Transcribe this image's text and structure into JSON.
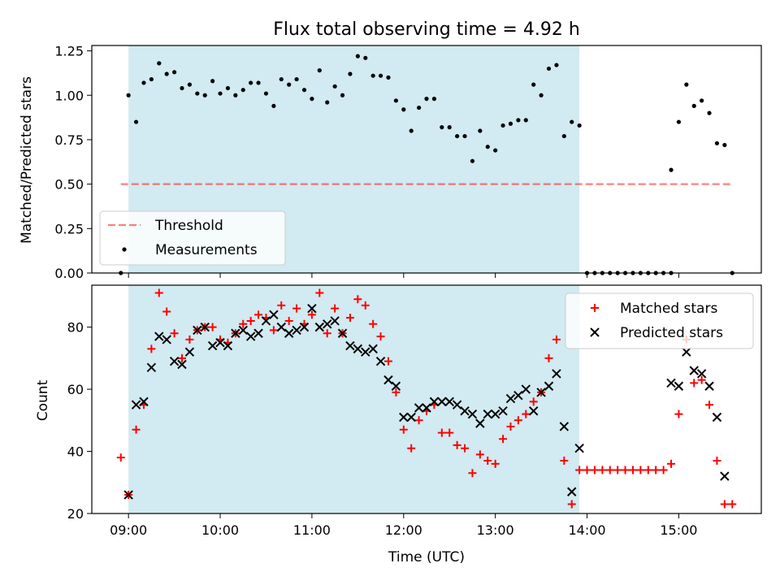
{
  "title": "Flux total observing time = 4.92 h",
  "xlabel": "Time (UTC)",
  "colors": {
    "observing_span": "#add8e6",
    "threshold": "#ff0000",
    "measurements": "#000000",
    "matched": "#ff0000",
    "predicted": "#000000"
  },
  "chart_data": [
    {
      "type": "scatter",
      "ylabel": "Matched/Predicted stars",
      "xlim": [
        "08:36",
        "15:54"
      ],
      "ylim": [
        0,
        1.28
      ],
      "yticks": [
        "0.00",
        "0.25",
        "0.50",
        "0.75",
        "1.00",
        "1.25"
      ],
      "shaded_span": [
        "09:00",
        "13:55"
      ],
      "legend": {
        "position": "lower-left",
        "entries": [
          "Threshold",
          "Measurements"
        ]
      },
      "threshold": {
        "name": "Threshold",
        "value": 0.5,
        "x_range": [
          "08:55",
          "15:35"
        ],
        "style": "dashed"
      },
      "series": [
        {
          "name": "Measurements",
          "marker": "dot",
          "points": [
            [
              "08:55",
              0.0
            ],
            [
              "09:00",
              1.0
            ],
            [
              "09:05",
              0.85
            ],
            [
              "09:10",
              1.07
            ],
            [
              "09:15",
              1.09
            ],
            [
              "09:20",
              1.18
            ],
            [
              "09:25",
              1.12
            ],
            [
              "09:30",
              1.13
            ],
            [
              "09:35",
              1.04
            ],
            [
              "09:40",
              1.06
            ],
            [
              "09:45",
              1.01
            ],
            [
              "09:50",
              1.0
            ],
            [
              "09:55",
              1.08
            ],
            [
              "10:00",
              1.01
            ],
            [
              "10:05",
              1.04
            ],
            [
              "10:10",
              1.0
            ],
            [
              "10:15",
              1.03
            ],
            [
              "10:20",
              1.07
            ],
            [
              "10:25",
              1.07
            ],
            [
              "10:30",
              1.01
            ],
            [
              "10:35",
              0.94
            ],
            [
              "10:40",
              1.09
            ],
            [
              "10:45",
              1.06
            ],
            [
              "10:50",
              1.09
            ],
            [
              "10:55",
              1.03
            ],
            [
              "11:00",
              0.98
            ],
            [
              "11:05",
              1.14
            ],
            [
              "11:10",
              0.96
            ],
            [
              "11:15",
              1.05
            ],
            [
              "11:20",
              1.0
            ],
            [
              "11:25",
              1.12
            ],
            [
              "11:30",
              1.22
            ],
            [
              "11:35",
              1.21
            ],
            [
              "11:40",
              1.11
            ],
            [
              "11:45",
              1.11
            ],
            [
              "11:50",
              1.1
            ],
            [
              "11:55",
              0.97
            ],
            [
              "12:00",
              0.92
            ],
            [
              "12:05",
              0.8
            ],
            [
              "12:10",
              0.93
            ],
            [
              "12:15",
              0.98
            ],
            [
              "12:20",
              0.98
            ],
            [
              "12:25",
              0.82
            ],
            [
              "12:30",
              0.82
            ],
            [
              "12:35",
              0.77
            ],
            [
              "12:40",
              0.77
            ],
            [
              "12:45",
              0.63
            ],
            [
              "12:50",
              0.8
            ],
            [
              "12:55",
              0.71
            ],
            [
              "13:00",
              0.69
            ],
            [
              "13:05",
              0.83
            ],
            [
              "13:10",
              0.84
            ],
            [
              "13:15",
              0.86
            ],
            [
              "13:20",
              0.86
            ],
            [
              "13:25",
              1.06
            ],
            [
              "13:30",
              1.0
            ],
            [
              "13:35",
              1.15
            ],
            [
              "13:40",
              1.17
            ],
            [
              "13:45",
              0.77
            ],
            [
              "13:50",
              0.85
            ],
            [
              "13:55",
              0.83
            ],
            [
              "14:00",
              0.0
            ],
            [
              "14:05",
              0.0
            ],
            [
              "14:10",
              0.0
            ],
            [
              "14:15",
              0.0
            ],
            [
              "14:20",
              0.0
            ],
            [
              "14:25",
              0.0
            ],
            [
              "14:30",
              0.0
            ],
            [
              "14:35",
              0.0
            ],
            [
              "14:40",
              0.0
            ],
            [
              "14:45",
              0.0
            ],
            [
              "14:50",
              0.0
            ],
            [
              "14:55",
              0.0
            ],
            [
              "14:55",
              0.58
            ],
            [
              "15:00",
              0.85
            ],
            [
              "15:05",
              1.06
            ],
            [
              "15:10",
              0.94
            ],
            [
              "15:15",
              0.97
            ],
            [
              "15:20",
              0.9
            ],
            [
              "15:25",
              0.73
            ],
            [
              "15:30",
              0.72
            ],
            [
              "15:35",
              0.0
            ]
          ]
        }
      ]
    },
    {
      "type": "scatter",
      "ylabel": "Count",
      "xlabel": "Time (UTC)",
      "xlim": [
        "08:36",
        "15:54"
      ],
      "ylim": [
        20,
        93.5
      ],
      "yticks": [
        "20",
        "40",
        "60",
        "80"
      ],
      "xticks": [
        "09:00",
        "10:00",
        "11:00",
        "12:00",
        "13:00",
        "14:00",
        "15:00"
      ],
      "shaded_span": [
        "09:00",
        "13:55"
      ],
      "legend": {
        "position": "top-right",
        "entries": [
          "Matched stars",
          "Predicted stars"
        ]
      },
      "series": [
        {
          "name": "Matched stars",
          "marker": "plus",
          "points": [
            [
              "08:55",
              38
            ],
            [
              "09:00",
              26
            ],
            [
              "09:05",
              47
            ],
            [
              "09:10",
              55
            ],
            [
              "09:15",
              73
            ],
            [
              "09:20",
              91
            ],
            [
              "09:25",
              85
            ],
            [
              "09:30",
              78
            ],
            [
              "09:35",
              70
            ],
            [
              "09:40",
              76
            ],
            [
              "09:45",
              79
            ],
            [
              "09:50",
              80
            ],
            [
              "09:55",
              80
            ],
            [
              "10:00",
              76
            ],
            [
              "10:05",
              75
            ],
            [
              "10:10",
              78
            ],
            [
              "10:15",
              81
            ],
            [
              "10:20",
              82
            ],
            [
              "10:25",
              84
            ],
            [
              "10:30",
              83
            ],
            [
              "10:35",
              79
            ],
            [
              "10:40",
              87
            ],
            [
              "10:45",
              82
            ],
            [
              "10:50",
              86
            ],
            [
              "10:55",
              81
            ],
            [
              "11:00",
              84
            ],
            [
              "11:05",
              91
            ],
            [
              "11:10",
              78
            ],
            [
              "11:15",
              86
            ],
            [
              "11:20",
              78
            ],
            [
              "11:25",
              83
            ],
            [
              "11:30",
              89
            ],
            [
              "11:35",
              87
            ],
            [
              "11:40",
              81
            ],
            [
              "11:45",
              77
            ],
            [
              "11:50",
              69
            ],
            [
              "11:55",
              59
            ],
            [
              "12:00",
              47
            ],
            [
              "12:05",
              41
            ],
            [
              "12:10",
              50
            ],
            [
              "12:15",
              53
            ],
            [
              "12:20",
              55
            ],
            [
              "12:25",
              46
            ],
            [
              "12:30",
              46
            ],
            [
              "12:35",
              42
            ],
            [
              "12:40",
              41
            ],
            [
              "12:45",
              33
            ],
            [
              "12:50",
              39
            ],
            [
              "12:55",
              37
            ],
            [
              "13:00",
              36
            ],
            [
              "13:05",
              44
            ],
            [
              "13:10",
              48
            ],
            [
              "13:15",
              50
            ],
            [
              "13:20",
              52
            ],
            [
              "13:25",
              56
            ],
            [
              "13:30",
              59
            ],
            [
              "13:35",
              70
            ],
            [
              "13:40",
              76
            ],
            [
              "13:45",
              37
            ],
            [
              "13:50",
              23
            ],
            [
              "13:55",
              34
            ],
            [
              "14:00",
              34
            ],
            [
              "14:05",
              34
            ],
            [
              "14:10",
              34
            ],
            [
              "14:15",
              34
            ],
            [
              "14:20",
              34
            ],
            [
              "14:25",
              34
            ],
            [
              "14:30",
              34
            ],
            [
              "14:35",
              34
            ],
            [
              "14:40",
              34
            ],
            [
              "14:45",
              34
            ],
            [
              "14:50",
              34
            ],
            [
              "14:55",
              36
            ],
            [
              "15:00",
              52
            ],
            [
              "15:05",
              76
            ],
            [
              "15:10",
              62
            ],
            [
              "15:15",
              63
            ],
            [
              "15:20",
              55
            ],
            [
              "15:25",
              37
            ],
            [
              "15:30",
              23
            ],
            [
              "15:35",
              23
            ]
          ]
        },
        {
          "name": "Predicted stars",
          "marker": "x",
          "points": [
            [
              "09:00",
              26
            ],
            [
              "09:05",
              55
            ],
            [
              "09:10",
              56
            ],
            [
              "09:15",
              67
            ],
            [
              "09:20",
              77
            ],
            [
              "09:25",
              76
            ],
            [
              "09:30",
              69
            ],
            [
              "09:35",
              68
            ],
            [
              "09:40",
              72
            ],
            [
              "09:45",
              79
            ],
            [
              "09:50",
              80
            ],
            [
              "09:55",
              74
            ],
            [
              "10:00",
              75
            ],
            [
              "10:05",
              74
            ],
            [
              "10:10",
              78
            ],
            [
              "10:15",
              79
            ],
            [
              "10:20",
              77
            ],
            [
              "10:25",
              78
            ],
            [
              "10:30",
              82
            ],
            [
              "10:35",
              84
            ],
            [
              "10:40",
              80
            ],
            [
              "10:45",
              78
            ],
            [
              "10:50",
              79
            ],
            [
              "10:55",
              80
            ],
            [
              "11:00",
              86
            ],
            [
              "11:05",
              80
            ],
            [
              "11:10",
              81
            ],
            [
              "11:15",
              82
            ],
            [
              "11:20",
              78
            ],
            [
              "11:25",
              74
            ],
            [
              "11:30",
              73
            ],
            [
              "11:35",
              72
            ],
            [
              "11:40",
              73
            ],
            [
              "11:45",
              69
            ],
            [
              "11:50",
              63
            ],
            [
              "11:55",
              61
            ],
            [
              "12:00",
              51
            ],
            [
              "12:05",
              51
            ],
            [
              "12:10",
              54
            ],
            [
              "12:15",
              54
            ],
            [
              "12:20",
              56
            ],
            [
              "12:25",
              56
            ],
            [
              "12:30",
              56
            ],
            [
              "12:35",
              55
            ],
            [
              "12:40",
              53
            ],
            [
              "12:45",
              52
            ],
            [
              "12:50",
              49
            ],
            [
              "12:55",
              52
            ],
            [
              "13:00",
              52
            ],
            [
              "13:05",
              53
            ],
            [
              "13:10",
              57
            ],
            [
              "13:15",
              58
            ],
            [
              "13:20",
              60
            ],
            [
              "13:25",
              53
            ],
            [
              "13:30",
              59
            ],
            [
              "13:35",
              61
            ],
            [
              "13:40",
              65
            ],
            [
              "13:45",
              48
            ],
            [
              "13:50",
              27
            ],
            [
              "13:55",
              41
            ],
            [
              "14:55",
              62
            ],
            [
              "15:00",
              61
            ],
            [
              "15:05",
              72
            ],
            [
              "15:10",
              66
            ],
            [
              "15:15",
              65
            ],
            [
              "15:20",
              61
            ],
            [
              "15:25",
              51
            ],
            [
              "15:30",
              32
            ]
          ]
        }
      ]
    }
  ]
}
